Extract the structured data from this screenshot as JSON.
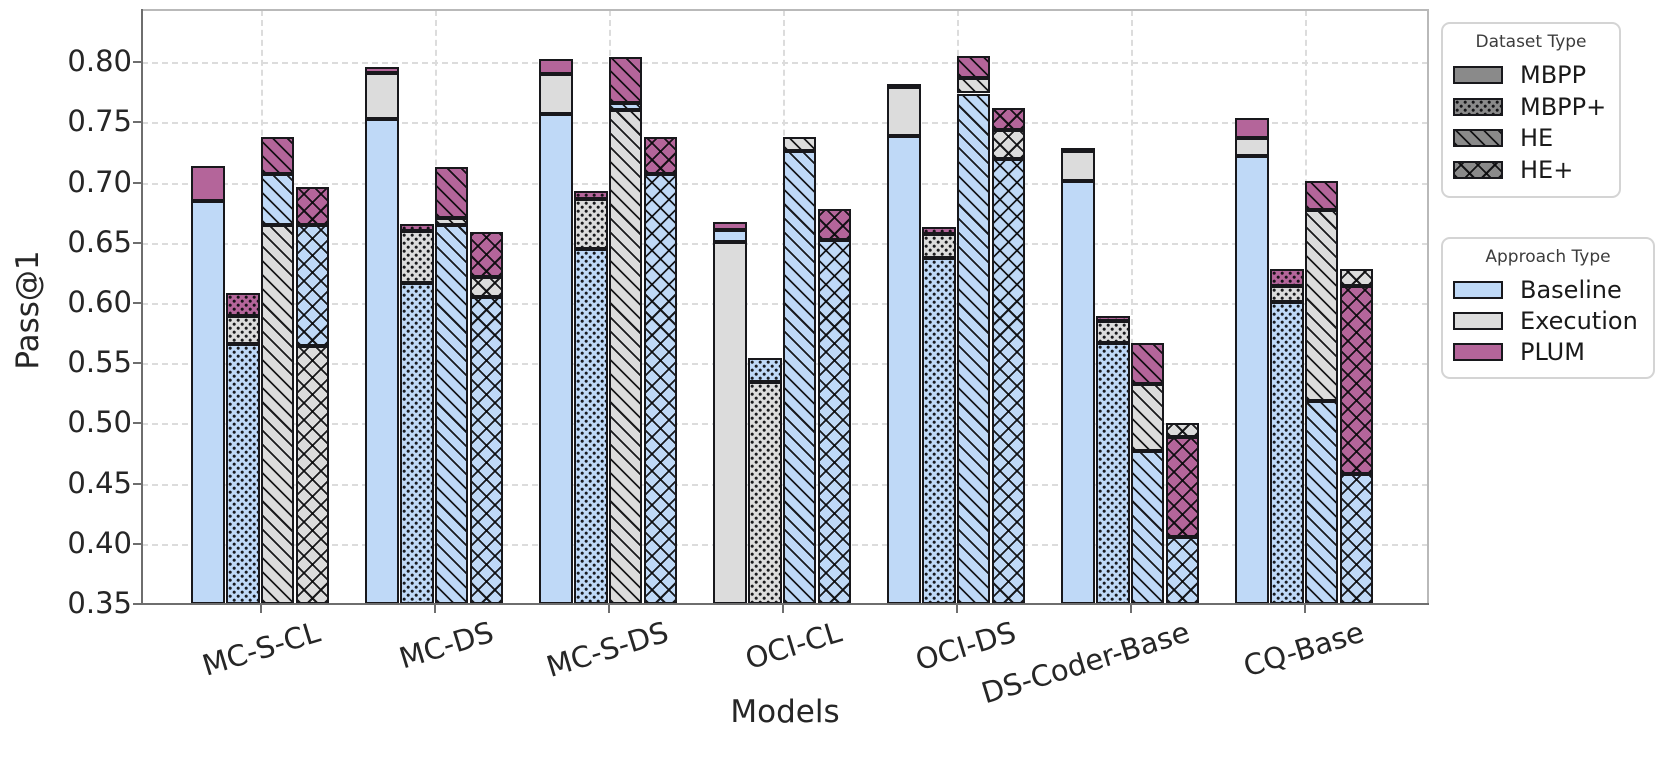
{
  "figure": {
    "ylabel": "Pass@1",
    "xlabel": "Models"
  },
  "colors": {
    "baseline": "#bfd9f7",
    "execution": "#dcdcdc",
    "plum": "#b4659a",
    "dataset_legend_fill": "#8a8a8a",
    "hatch": "#141418",
    "grid": "#dcdcdc"
  },
  "y_axis": {
    "ticks": [
      {
        "label": "0.80",
        "value": 0.8
      },
      {
        "label": "0.75",
        "value": 0.75
      },
      {
        "label": "0.70",
        "value": 0.7
      },
      {
        "label": "0.65",
        "value": 0.65
      },
      {
        "label": "0.60",
        "value": 0.6
      },
      {
        "label": "0.55",
        "value": 0.55
      },
      {
        "label": "0.50",
        "value": 0.5
      },
      {
        "label": "0.45",
        "value": 0.45
      },
      {
        "label": "0.40",
        "value": 0.4
      },
      {
        "label": "0.35",
        "value": 0.35
      }
    ],
    "min": 0.35,
    "max": 0.8432,
    "grid": true
  },
  "legends": {
    "dataset": {
      "title": "Dataset Type",
      "items": [
        {
          "label": "MBPP",
          "hatch": "none"
        },
        {
          "label": "MBPP+",
          "hatch": "dots"
        },
        {
          "label": "HE",
          "hatch": "diag"
        },
        {
          "label": "HE+",
          "hatch": "cross"
        }
      ]
    },
    "approach": {
      "title": "Approach Type",
      "items": [
        {
          "label": "Baseline",
          "color_key": "baseline"
        },
        {
          "label": "Execution",
          "color_key": "execution"
        },
        {
          "label": "PLUM",
          "color_key": "plum"
        }
      ]
    }
  },
  "chart_data": {
    "type": "bar",
    "title": "",
    "xlabel": "Models",
    "ylabel": "Pass@1",
    "ylim": [
      0.35,
      0.8432
    ],
    "grid": "both, dashed",
    "legend_position": "outside right",
    "categories": [
      "MC-S-CL",
      "MC-DS",
      "MC-S-DS",
      "OCI-CL",
      "OCI-DS",
      "DS-Coder-Base",
      "CQ-Base"
    ],
    "datasets": [
      "MBPP",
      "MBPP+",
      "HE",
      "HE+"
    ],
    "approaches": [
      "Baseline",
      "Execution",
      "PLUM"
    ],
    "note": "Overlaid (not stacked) bars: for each model+dataset, the three approach bars share one x slot; shorter bars are drawn in front. null = bar fully hidden behind taller bars in the screenshot.",
    "values": [
      {
        "model": "MC-S-CL",
        "bars": [
          {
            "dataset": "MBPP",
            "baseline": 0.685,
            "execution": null,
            "plum": 0.714
          },
          {
            "dataset": "MBPP+",
            "baseline": 0.566,
            "execution": 0.589,
            "plum": 0.608
          },
          {
            "dataset": "HE",
            "baseline": 0.707,
            "execution": 0.665,
            "plum": 0.738
          },
          {
            "dataset": "HE+",
            "baseline": 0.665,
            "execution": 0.564,
            "plum": 0.696
          }
        ]
      },
      {
        "model": "MC-DS",
        "bars": [
          {
            "dataset": "MBPP",
            "baseline": 0.753,
            "execution": 0.791,
            "plum": 0.796
          },
          {
            "dataset": "MBPP+",
            "baseline": 0.617,
            "execution": 0.66,
            "plum": 0.666
          },
          {
            "dataset": "HE",
            "baseline": 0.665,
            "execution": 0.671,
            "plum": 0.713
          },
          {
            "dataset": "HE+",
            "baseline": 0.605,
            "execution": 0.622,
            "plum": 0.659
          }
        ]
      },
      {
        "model": "MC-S-DS",
        "bars": [
          {
            "dataset": "MBPP",
            "baseline": 0.757,
            "execution": 0.79,
            "plum": 0.803
          },
          {
            "dataset": "MBPP+",
            "baseline": 0.645,
            "execution": 0.686,
            "plum": 0.693
          },
          {
            "dataset": "HE",
            "baseline": 0.766,
            "execution": 0.76,
            "plum": 0.804
          },
          {
            "dataset": "HE+",
            "baseline": 0.707,
            "execution": null,
            "plum": 0.738
          }
        ]
      },
      {
        "model": "OCI-CL",
        "bars": [
          {
            "dataset": "MBPP",
            "baseline": 0.661,
            "execution": 0.651,
            "plum": 0.667
          },
          {
            "dataset": "MBPP+",
            "baseline": 0.554,
            "execution": 0.534,
            "plum": null
          },
          {
            "dataset": "HE",
            "baseline": 0.726,
            "execution": 0.738,
            "plum": null
          },
          {
            "dataset": "HE+",
            "baseline": 0.652,
            "execution": null,
            "plum": 0.678
          }
        ]
      },
      {
        "model": "OCI-DS",
        "bars": [
          {
            "dataset": "MBPP",
            "baseline": 0.739,
            "execution": 0.779,
            "plum": 0.782
          },
          {
            "dataset": "MBPP+",
            "baseline": 0.637,
            "execution": 0.657,
            "plum": 0.663
          },
          {
            "dataset": "HE",
            "baseline": 0.774,
            "execution": 0.787,
            "plum": 0.805
          },
          {
            "dataset": "HE+",
            "baseline": 0.72,
            "execution": 0.744,
            "plum": 0.762
          }
        ]
      },
      {
        "model": "DS-Coder-Base",
        "bars": [
          {
            "dataset": "MBPP",
            "baseline": 0.701,
            "execution": 0.726,
            "plum": 0.729
          },
          {
            "dataset": "MBPP+",
            "baseline": 0.567,
            "execution": 0.585,
            "plum": 0.589
          },
          {
            "dataset": "HE",
            "baseline": 0.477,
            "execution": 0.533,
            "plum": 0.567
          },
          {
            "dataset": "HE+",
            "baseline": 0.406,
            "execution": 0.5,
            "plum": 0.489
          }
        ]
      },
      {
        "model": "CQ-Base",
        "bars": [
          {
            "dataset": "MBPP",
            "baseline": 0.722,
            "execution": 0.737,
            "plum": 0.754
          },
          {
            "dataset": "MBPP+",
            "baseline": 0.601,
            "execution": 0.614,
            "plum": 0.628
          },
          {
            "dataset": "HE",
            "baseline": 0.519,
            "execution": 0.677,
            "plum": 0.701
          },
          {
            "dataset": "HE+",
            "baseline": 0.458,
            "execution": 0.628,
            "plum": 0.614
          }
        ]
      }
    ]
  }
}
